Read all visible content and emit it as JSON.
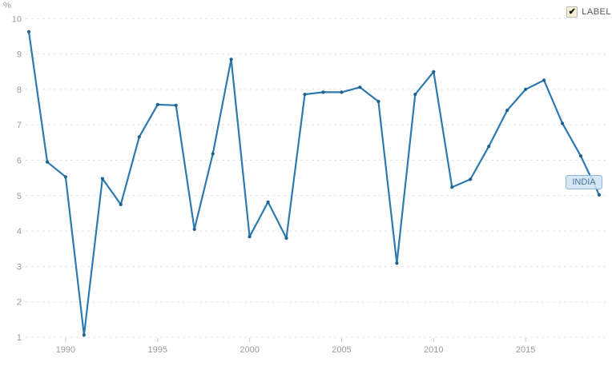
{
  "controls": {
    "label_checkbox": {
      "label": "LABEL",
      "checked": true,
      "check_glyph": "✔"
    }
  },
  "series_chip": {
    "text": "INDIA"
  },
  "chart_data": {
    "type": "line",
    "title": "",
    "unit": "%",
    "series_name": "INDIA",
    "x": [
      1988,
      1989,
      1990,
      1991,
      1992,
      1993,
      1994,
      1995,
      1996,
      1997,
      1998,
      1999,
      2000,
      2001,
      2002,
      2003,
      2004,
      2005,
      2006,
      2007,
      2008,
      2009,
      2010,
      2011,
      2012,
      2013,
      2014,
      2015,
      2016,
      2017,
      2018,
      2019
    ],
    "values": [
      9.63,
      5.95,
      5.53,
      1.06,
      5.48,
      4.75,
      6.66,
      7.57,
      7.55,
      4.05,
      6.18,
      8.85,
      3.84,
      4.82,
      3.8,
      7.86,
      7.92,
      7.92,
      8.06,
      7.66,
      3.09,
      7.86,
      8.5,
      5.24,
      5.46,
      6.39,
      7.41,
      8.0,
      8.26,
      7.04,
      6.12,
      5.02
    ],
    "xlabel": "",
    "ylabel": "%",
    "ylim": [
      1,
      10
    ],
    "yticks": [
      1,
      2,
      3,
      4,
      5,
      6,
      7,
      8,
      9,
      10
    ],
    "xticks": [
      1990,
      1995,
      2000,
      2005,
      2010,
      2015
    ],
    "grid": "horizontal-dashed",
    "legend_position": "none",
    "line_color": "#2d7ab0",
    "marker_color": "#1f618f",
    "grid_color": "#e3e3e3",
    "tick_color": "#c9c9c9",
    "axis_text_color": "#9b9b9b"
  }
}
